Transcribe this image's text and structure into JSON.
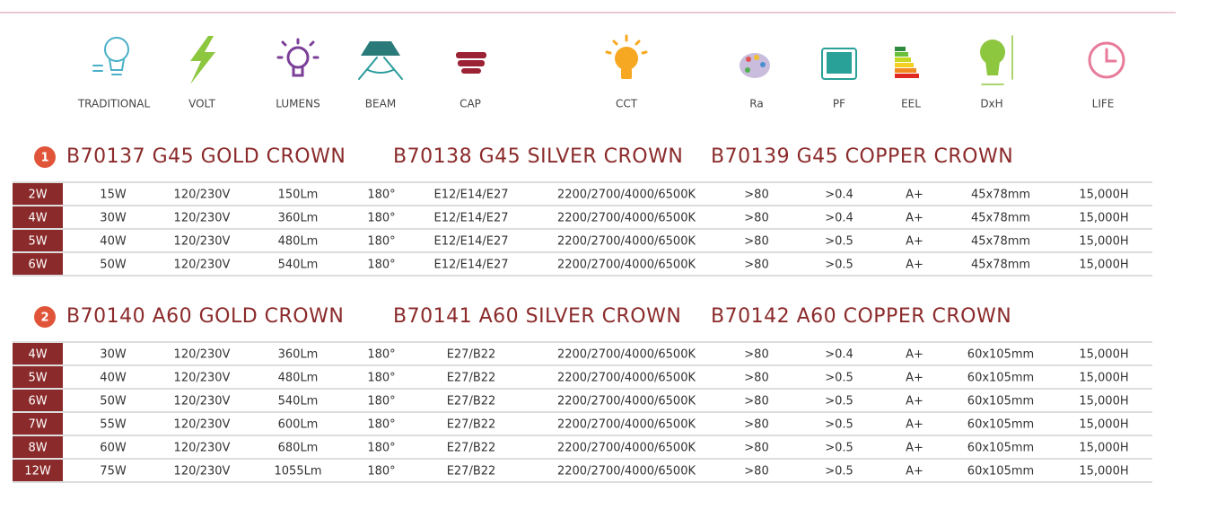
{
  "header": {
    "icons": [
      {
        "label": "TRADITIONAL"
      },
      {
        "label": "VOLT"
      },
      {
        "label": "LUMENS"
      },
      {
        "label": "BEAM"
      },
      {
        "label": "CAP"
      },
      {
        "label": "CCT"
      },
      {
        "label": "Ra"
      },
      {
        "label": "PF"
      },
      {
        "label": "EEL"
      },
      {
        "label": "DxH"
      },
      {
        "label": "LIFE"
      }
    ]
  },
  "sections": [
    {
      "number": "1",
      "titles": [
        "B70137 G45 GOLD CROWN",
        "B70138 G45 SILVER CROWN",
        "B70139 G45 COPPER CROWN"
      ],
      "rows": [
        [
          "2W",
          "15W",
          "120/230V",
          "150Lm",
          "180°",
          "E12/E14/E27",
          "2200/2700/4000/6500K",
          ">80",
          ">0.4",
          "A+",
          "45x78mm",
          "15,000H"
        ],
        [
          "4W",
          "30W",
          "120/230V",
          "360Lm",
          "180°",
          "E12/E14/E27",
          "2200/2700/4000/6500K",
          ">80",
          ">0.4",
          "A+",
          "45x78mm",
          "15,000H"
        ],
        [
          "5W",
          "40W",
          "120/230V",
          "480Lm",
          "180°",
          "E12/E14/E27",
          "2200/2700/4000/6500K",
          ">80",
          ">0.5",
          "A+",
          "45x78mm",
          "15,000H"
        ],
        [
          "6W",
          "50W",
          "120/230V",
          "540Lm",
          "180°",
          "E12/E14/E27",
          "2200/2700/4000/6500K",
          ">80",
          ">0.5",
          "A+",
          "45x78mm",
          "15,000H"
        ]
      ]
    },
    {
      "number": "2",
      "titles": [
        "B70140 A60 GOLD CROWN",
        "B70141 A60 SILVER CROWN",
        "B70142 A60 COPPER CROWN"
      ],
      "rows": [
        [
          "4W",
          "30W",
          "120/230V",
          "360Lm",
          "180°",
          "E27/B22",
          "2200/2700/4000/6500K",
          ">80",
          ">0.4",
          "A+",
          "60x105mm",
          "15,000H"
        ],
        [
          "5W",
          "40W",
          "120/230V",
          "480Lm",
          "180°",
          "E27/B22",
          "2200/2700/4000/6500K",
          ">80",
          ">0.5",
          "A+",
          "60x105mm",
          "15,000H"
        ],
        [
          "6W",
          "50W",
          "120/230V",
          "540Lm",
          "180°",
          "E27/B22",
          "2200/2700/4000/6500K",
          ">80",
          ">0.5",
          "A+",
          "60x105mm",
          "15,000H"
        ],
        [
          "7W",
          "55W",
          "120/230V",
          "600Lm",
          "180°",
          "E27/B22",
          "2200/2700/4000/6500K",
          ">80",
          ">0.5",
          "A+",
          "60x105mm",
          "15,000H"
        ],
        [
          "8W",
          "60W",
          "120/230V",
          "680Lm",
          "180°",
          "E27/B22",
          "2200/2700/4000/6500K",
          ">80",
          ">0.5",
          "A+",
          "60x105mm",
          "15,000H"
        ],
        [
          "12W",
          "75W",
          "120/230V",
          "1055Lm",
          "180°",
          "E27/B22",
          "2200/2700/4000/6500K",
          ">80",
          ">0.5",
          "A+",
          "60x105mm",
          "15,000H"
        ]
      ]
    }
  ]
}
